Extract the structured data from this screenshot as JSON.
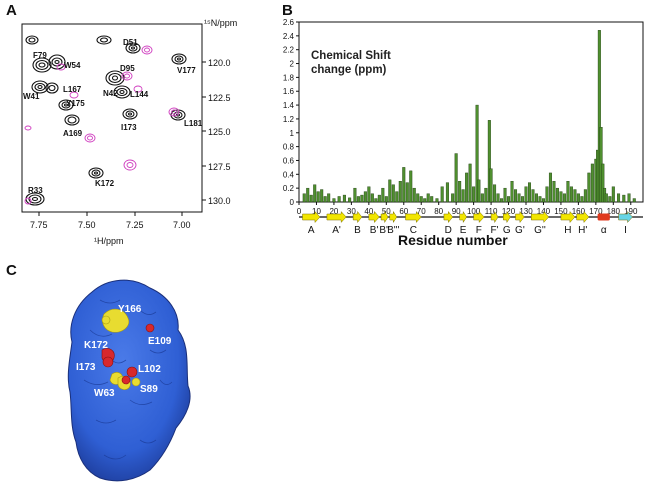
{
  "panels": {
    "a": {
      "letter": "A"
    },
    "b": {
      "letter": "B"
    },
    "c": {
      "letter": "C"
    }
  },
  "nmr": {
    "y_axis_label": "¹⁵N/ppm",
    "x_axis_label": "¹H/ppm",
    "x_ticks": [
      "7.75",
      "7.50",
      "7.25",
      "7.00"
    ],
    "y_ticks": [
      "120.0",
      "122.5",
      "125.0",
      "127.5",
      "130.0"
    ],
    "peak_labels": [
      "D51",
      "F79",
      "W54",
      "D95",
      "V177",
      "N42",
      "L167",
      "L144",
      "W41",
      "Y175",
      "I173",
      "L181",
      "A169",
      "K172",
      "R33"
    ]
  },
  "chart_data": {
    "type": "bar",
    "title": "Chemical Shift\nchange (ppm)",
    "xlabel": "Residue number",
    "ylabel": "",
    "xlim": [
      0,
      197
    ],
    "ylim": [
      0,
      2.6
    ],
    "x_ticks": [
      0,
      10,
      20,
      30,
      40,
      50,
      60,
      70,
      80,
      90,
      100,
      110,
      120,
      130,
      140,
      150,
      160,
      170,
      180,
      190
    ],
    "y_ticks": [
      0,
      0.2,
      0.4,
      0.6,
      0.8,
      1.0,
      1.2,
      1.4,
      1.6,
      1.8,
      2.0,
      2.2,
      2.4,
      2.6
    ],
    "y_tick_labels": [
      "0",
      "0.2",
      "0.4",
      "0.6",
      "0.8",
      "1",
      "1.2",
      "1.4",
      "1.6",
      "1.8",
      "2",
      "2.2",
      "2.4",
      "2.6"
    ],
    "bar_color": "#4f8f2f",
    "x": [
      3,
      5,
      7,
      9,
      11,
      13,
      15,
      17,
      20,
      23,
      26,
      29,
      32,
      34,
      36,
      38,
      40,
      42,
      44,
      46,
      48,
      50,
      52,
      54,
      56,
      58,
      60,
      62,
      64,
      66,
      68,
      70,
      72,
      74,
      76,
      79,
      82,
      85,
      88,
      90,
      92,
      94,
      96,
      98,
      100,
      102,
      103,
      105,
      107,
      109,
      110,
      112,
      114,
      116,
      118,
      120,
      122,
      124,
      126,
      128,
      130,
      132,
      134,
      136,
      138,
      140,
      142,
      144,
      146,
      148,
      150,
      152,
      154,
      156,
      158,
      160,
      162,
      164,
      166,
      168,
      170,
      171,
      172,
      173,
      174,
      175,
      176,
      178,
      180,
      183,
      186,
      189,
      192
    ],
    "values": [
      0.12,
      0.2,
      0.1,
      0.25,
      0.15,
      0.18,
      0.08,
      0.12,
      0.05,
      0.08,
      0.1,
      0.06,
      0.2,
      0.08,
      0.1,
      0.15,
      0.22,
      0.12,
      0.05,
      0.1,
      0.2,
      0.08,
      0.32,
      0.25,
      0.15,
      0.3,
      0.5,
      0.28,
      0.45,
      0.2,
      0.12,
      0.08,
      0.05,
      0.12,
      0.08,
      0.05,
      0.22,
      0.28,
      0.12,
      0.7,
      0.3,
      0.18,
      0.42,
      0.55,
      0.22,
      1.4,
      0.32,
      0.12,
      0.2,
      1.18,
      0.48,
      0.25,
      0.12,
      0.05,
      0.2,
      0.08,
      0.3,
      0.18,
      0.12,
      0.08,
      0.22,
      0.28,
      0.18,
      0.12,
      0.08,
      0.05,
      0.22,
      0.42,
      0.3,
      0.2,
      0.15,
      0.12,
      0.3,
      0.22,
      0.18,
      0.12,
      0.08,
      0.18,
      0.42,
      0.55,
      0.62,
      0.75,
      2.48,
      1.08,
      0.55,
      0.2,
      0.12,
      0.08,
      0.22,
      0.12,
      0.1,
      0.12,
      0.05
    ],
    "secondary_structure": [
      {
        "label": "A",
        "type": "strand",
        "start": 2,
        "end": 12
      },
      {
        "label": "A'",
        "type": "strand",
        "start": 16,
        "end": 27
      },
      {
        "label": "B",
        "type": "strand",
        "start": 31,
        "end": 36
      },
      {
        "label": "B'",
        "type": "strand",
        "start": 40,
        "end": 46
      },
      {
        "label": "B''",
        "type": "strand",
        "start": 47,
        "end": 51
      },
      {
        "label": "B'''",
        "type": "strand",
        "start": 52,
        "end": 56
      },
      {
        "label": "C",
        "type": "strand",
        "start": 61,
        "end": 70
      },
      {
        "label": "D",
        "type": "strand",
        "start": 83,
        "end": 88
      },
      {
        "label": "E",
        "type": "strand",
        "start": 92,
        "end": 96
      },
      {
        "label": "F",
        "type": "strand",
        "start": 100,
        "end": 106
      },
      {
        "label": "F'",
        "type": "strand",
        "start": 110,
        "end": 114
      },
      {
        "label": "G",
        "type": "strand",
        "start": 117,
        "end": 121
      },
      {
        "label": "G'",
        "type": "strand",
        "start": 124,
        "end": 129
      },
      {
        "label": "G''",
        "type": "strand",
        "start": 133,
        "end": 143
      },
      {
        "label": "H",
        "type": "strand",
        "start": 150,
        "end": 158
      },
      {
        "label": "H'",
        "type": "strand",
        "start": 159,
        "end": 166
      },
      {
        "label": "α",
        "type": "helix",
        "start": 171,
        "end": 178
      },
      {
        "label": "I",
        "type": "strand",
        "start": 183,
        "end": 191
      }
    ],
    "strand_color": "#f2e600",
    "helix_color": "#e03a1e",
    "final_strand_color": "#66d4e6"
  },
  "structure": {
    "labels": [
      "Y166",
      "E109",
      "K172",
      "I173",
      "L102",
      "W63",
      "S89"
    ],
    "surface_color": "#2f5fd4",
    "highlight_yellow": "#e8dc30",
    "highlight_red": "#d8282c"
  }
}
